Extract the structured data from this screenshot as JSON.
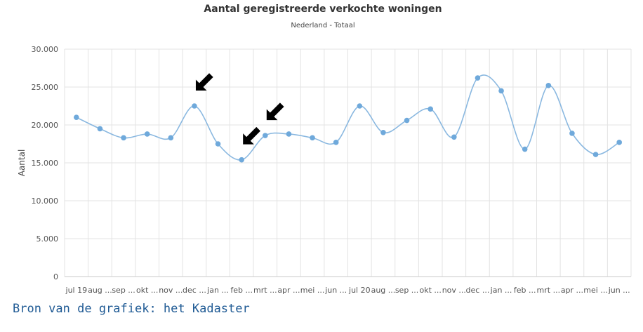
{
  "source_text": "Bron van de grafiek: het Kadaster",
  "chart_data": {
    "type": "line",
    "title": "Aantal geregistreerde verkochte woningen",
    "subtitle": "Nederland - Totaal",
    "xlabel": "",
    "ylabel": "Aantal",
    "ylim": [
      0,
      30000
    ],
    "yticks": [
      "0",
      "5.000",
      "10.000",
      "15.000",
      "20.000",
      "25.000",
      "30.000"
    ],
    "grid": true,
    "smooth": true,
    "line_color": "#8ab8e0",
    "point_color": "#6fa9db",
    "arrow_color": "#000000",
    "categories": [
      "jul 19",
      "aug ...",
      "sep ...",
      "okt ...",
      "nov ...",
      "dec ...",
      "jan ...",
      "feb ...",
      "mrt ...",
      "apr ...",
      "mei ...",
      "jun ...",
      "jul 20",
      "aug ...",
      "sep ...",
      "okt ...",
      "nov ...",
      "dec ...",
      "jan ...",
      "feb ...",
      "mrt ...",
      "apr ...",
      "mei ...",
      "jun ..."
    ],
    "values": [
      21000,
      19500,
      18300,
      18800,
      18300,
      22500,
      17500,
      15400,
      18600,
      18800,
      18300,
      17700,
      22500,
      19000,
      20600,
      22100,
      18400,
      26200,
      24500,
      16800,
      25200,
      18900,
      16100,
      17700
    ],
    "annotations": [
      {
        "type": "arrow",
        "points_to": "dec ..."
      },
      {
        "type": "arrow",
        "points_to": "feb ..."
      },
      {
        "type": "arrow",
        "points_to": "mrt ..."
      }
    ]
  }
}
